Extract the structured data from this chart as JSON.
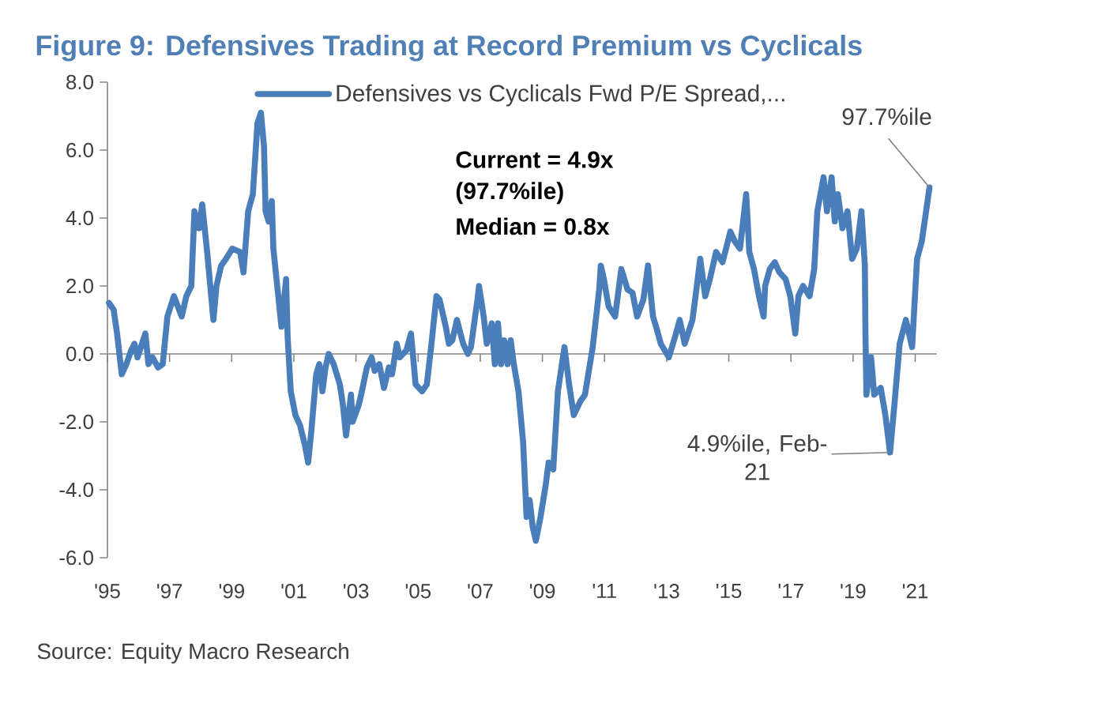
{
  "chart_data": {
    "type": "line",
    "title": "Figure 9: Defensives Trading at Record Premium vs Cyclicals",
    "x": [
      1995.05,
      1995.2,
      1995.31,
      1995.46,
      1995.61,
      1995.76,
      1995.87,
      1995.97,
      1996.22,
      1996.32,
      1996.45,
      1996.63,
      1996.78,
      1996.93,
      1997.14,
      1997.39,
      1997.54,
      1997.7,
      1997.8,
      1997.95,
      1998.05,
      1998.21,
      1998.31,
      1998.41,
      1998.51,
      1998.66,
      1998.82,
      1999.02,
      1999.27,
      1999.38,
      1999.53,
      1999.68,
      1999.83,
      1999.94,
      2000.04,
      2000.09,
      2000.19,
      2000.29,
      2000.34,
      2000.5,
      2000.6,
      2000.75,
      2000.8,
      2000.9,
      2001.05,
      2001.2,
      2001.36,
      2001.46,
      2001.56,
      2001.72,
      2001.82,
      2001.92,
      2002.02,
      2002.12,
      2002.28,
      2002.48,
      2002.58,
      2002.68,
      2002.84,
      2002.89,
      2003.09,
      2003.19,
      2003.35,
      2003.5,
      2003.6,
      2003.75,
      2003.9,
      2004.06,
      2004.16,
      2004.31,
      2004.41,
      2004.62,
      2004.77,
      2004.92,
      2005.13,
      2005.28,
      2005.43,
      2005.59,
      2005.69,
      2005.89,
      2005.99,
      2006.1,
      2006.25,
      2006.45,
      2006.6,
      2006.7,
      2006.91,
      2006.96,
      2007.11,
      2007.21,
      2007.37,
      2007.47,
      2007.57,
      2007.67,
      2007.77,
      2007.88,
      2007.98,
      2008.08,
      2008.23,
      2008.38,
      2008.49,
      2008.59,
      2008.69,
      2008.79,
      2008.94,
      2009.1,
      2009.2,
      2009.35,
      2009.5,
      2009.71,
      2009.86,
      2010.01,
      2010.22,
      2010.37,
      2010.62,
      2010.83,
      2010.88,
      2010.98,
      2011.13,
      2011.34,
      2011.54,
      2011.74,
      2011.9,
      2012.05,
      2012.25,
      2012.4,
      2012.56,
      2012.66,
      2012.81,
      2013.07,
      2013.27,
      2013.42,
      2013.58,
      2013.83,
      2013.93,
      2014.08,
      2014.24,
      2014.39,
      2014.59,
      2014.8,
      2015.05,
      2015.2,
      2015.36,
      2015.56,
      2015.66,
      2015.81,
      2015.97,
      2016.12,
      2016.17,
      2016.32,
      2016.48,
      2016.63,
      2016.83,
      2016.98,
      2017.14,
      2017.24,
      2017.39,
      2017.6,
      2017.75,
      2017.85,
      2018.05,
      2018.16,
      2018.31,
      2018.41,
      2018.51,
      2018.66,
      2018.82,
      2018.97,
      2019.12,
      2019.27,
      2019.38,
      2019.4,
      2019.43,
      2019.58,
      2019.68,
      2019.89,
      2020.04,
      2020.19,
      2020.34,
      2020.5,
      2020.7,
      2020.9,
      2021.06,
      2021.21,
      2021.46
    ],
    "series": [
      {
        "name": "Defensives vs Cyclicals Fwd P/E Spread,...",
        "color": "#4a7ebb",
        "values": [
          1.5,
          1.3,
          0.6,
          -0.6,
          -0.3,
          0.1,
          0.3,
          -0.1,
          0.6,
          -0.3,
          -0.1,
          -0.4,
          -0.3,
          1.1,
          1.7,
          1.1,
          1.7,
          2.0,
          4.2,
          3.7,
          4.4,
          3.0,
          2.0,
          1.0,
          2.0,
          2.6,
          2.8,
          3.1,
          3.0,
          2.4,
          4.2,
          4.7,
          6.8,
          7.1,
          6.1,
          4.2,
          3.9,
          4.5,
          3.1,
          1.7,
          0.8,
          2.2,
          0.5,
          -1.1,
          -1.8,
          -2.1,
          -2.7,
          -3.2,
          -2.3,
          -0.6,
          -0.3,
          -1.1,
          -0.4,
          0.0,
          -0.3,
          -0.9,
          -1.5,
          -2.4,
          -1.2,
          -2.0,
          -1.5,
          -1.1,
          -0.4,
          -0.1,
          -0.5,
          -0.3,
          -1.0,
          -0.4,
          -0.6,
          0.3,
          -0.1,
          0.1,
          0.6,
          -0.9,
          -1.1,
          -0.9,
          0.3,
          1.7,
          1.6,
          0.8,
          0.3,
          0.4,
          1.0,
          0.3,
          0.0,
          0.2,
          1.6,
          2.0,
          1.1,
          0.3,
          0.9,
          -0.3,
          0.9,
          -0.3,
          0.4,
          -0.3,
          0.4,
          -0.3,
          -1.1,
          -2.6,
          -4.8,
          -4.3,
          -5.1,
          -5.5,
          -4.8,
          -3.9,
          -3.2,
          -3.4,
          -1.1,
          0.2,
          -0.9,
          -1.8,
          -1.4,
          -1.2,
          0.2,
          1.9,
          2.6,
          2.2,
          1.4,
          1.1,
          2.5,
          1.9,
          1.8,
          1.1,
          1.6,
          2.6,
          1.1,
          0.8,
          0.3,
          -0.1,
          0.5,
          1.0,
          0.3,
          1.0,
          1.7,
          2.8,
          1.7,
          2.2,
          3.0,
          2.7,
          3.6,
          3.3,
          3.1,
          4.7,
          3.0,
          2.5,
          1.7,
          1.1,
          2.0,
          2.5,
          2.7,
          2.4,
          2.2,
          1.7,
          0.6,
          1.7,
          2.0,
          1.7,
          2.5,
          4.2,
          5.2,
          4.2,
          5.2,
          3.9,
          4.7,
          3.7,
          4.2,
          2.8,
          3.1,
          4.2,
          2.6,
          0.5,
          -1.2,
          -0.1,
          -1.2,
          -1.0,
          -1.8,
          -2.9,
          -1.4,
          0.3,
          1.0,
          0.2,
          2.8,
          3.3,
          4.9
        ]
      }
    ],
    "xlim": [
      1995,
      2021.7
    ],
    "xticks": [
      {
        "value": 1995,
        "label": "'95"
      },
      {
        "value": 1997,
        "label": "'97"
      },
      {
        "value": 1999,
        "label": "'99"
      },
      {
        "value": 2001,
        "label": "'01"
      },
      {
        "value": 2003,
        "label": "'03"
      },
      {
        "value": 2005,
        "label": "'05"
      },
      {
        "value": 2007,
        "label": "'07"
      },
      {
        "value": 2009,
        "label": "'09"
      },
      {
        "value": 2011,
        "label": "'11"
      },
      {
        "value": 2013,
        "label": "'13"
      },
      {
        "value": 2015,
        "label": "'15"
      },
      {
        "value": 2017,
        "label": "'17"
      },
      {
        "value": 2019,
        "label": "'19"
      },
      {
        "value": 2021,
        "label": "'21"
      }
    ],
    "ylim": [
      -6,
      8
    ],
    "yticks": [
      {
        "value": -6,
        "label": "-6.0"
      },
      {
        "value": -4,
        "label": "-4.0"
      },
      {
        "value": -2,
        "label": "-2.0"
      },
      {
        "value": 0,
        "label": "0.0"
      },
      {
        "value": 2,
        "label": "2.0"
      },
      {
        "value": 4,
        "label": "4.0"
      },
      {
        "value": 6,
        "label": "6.0"
      },
      {
        "value": 8,
        "label": "8.0"
      }
    ],
    "legend": "top",
    "line_style": "solid",
    "annotations": [
      "Current = 4.9x",
      "(97.7%ile)",
      "Median = 0.8x",
      {
        "text": "97.7%ile",
        "x": 2021.46,
        "y": 4.9
      },
      {
        "text": "4.9%ile, Feb-21",
        "x": 2020.19,
        "y": -2.9
      },
      "Source: Equity Macro Research"
    ]
  }
}
